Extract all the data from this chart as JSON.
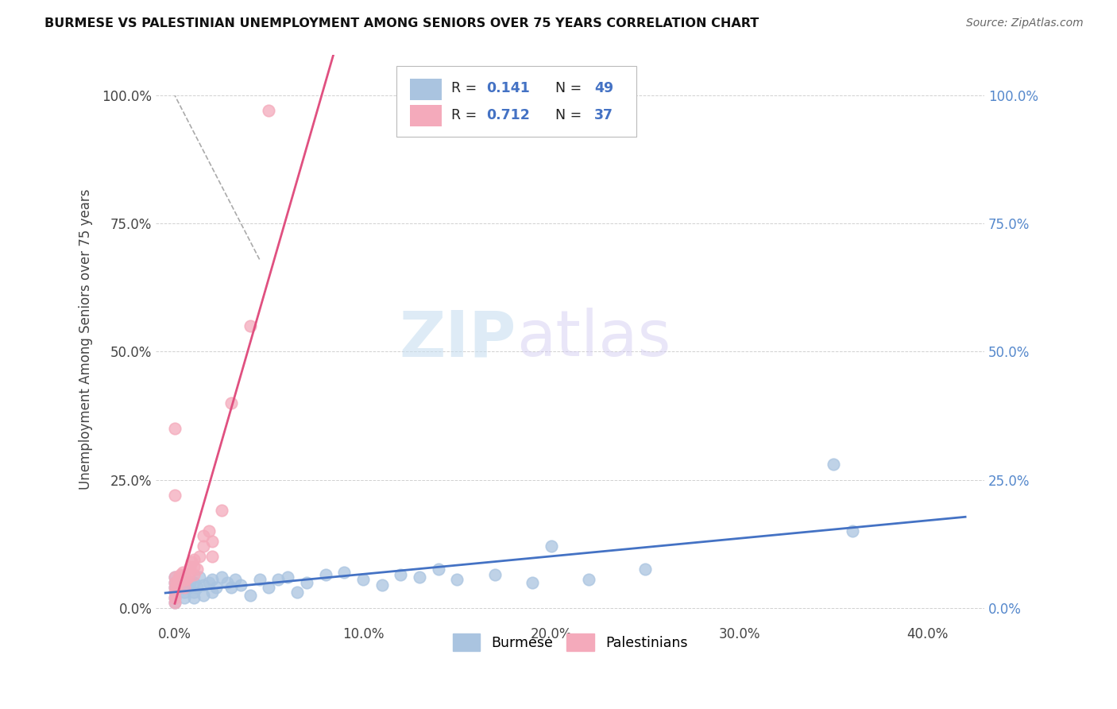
{
  "title": "BURMESE VS PALESTINIAN UNEMPLOYMENT AMONG SENIORS OVER 75 YEARS CORRELATION CHART",
  "source": "Source: ZipAtlas.com",
  "ylabel": "Unemployment Among Seniors over 75 years",
  "x_tick_labels": [
    "0.0%",
    "10.0%",
    "20.0%",
    "30.0%",
    "40.0%"
  ],
  "x_tick_vals": [
    0.0,
    0.1,
    0.2,
    0.3,
    0.4
  ],
  "y_tick_labels": [
    "0.0%",
    "25.0%",
    "50.0%",
    "75.0%",
    "100.0%"
  ],
  "y_tick_vals": [
    0.0,
    0.25,
    0.5,
    0.75,
    1.0
  ],
  "xlim": [
    -0.01,
    0.43
  ],
  "ylim": [
    -0.03,
    1.08
  ],
  "burmese_R": 0.141,
  "burmese_N": 49,
  "palestinian_R": 0.712,
  "palestinian_N": 37,
  "burmese_color": "#aac4e0",
  "palestinian_color": "#f4aabb",
  "burmese_line_color": "#4472c4",
  "palestinian_line_color": "#e05080",
  "legend_labels": [
    "Burmese",
    "Palestinians"
  ],
  "watermark_zip": "ZIP",
  "watermark_atlas": "atlas",
  "burmese_x": [
    0.0,
    0.0,
    0.0,
    0.0,
    0.0,
    0.0,
    0.005,
    0.005,
    0.005,
    0.007,
    0.008,
    0.01,
    0.01,
    0.01,
    0.012,
    0.013,
    0.015,
    0.015,
    0.018,
    0.02,
    0.02,
    0.022,
    0.025,
    0.028,
    0.03,
    0.032,
    0.035,
    0.04,
    0.045,
    0.05,
    0.055,
    0.06,
    0.065,
    0.07,
    0.08,
    0.09,
    0.1,
    0.11,
    0.12,
    0.13,
    0.14,
    0.15,
    0.17,
    0.19,
    0.2,
    0.22,
    0.25,
    0.35,
    0.36
  ],
  "burmese_y": [
    0.01,
    0.02,
    0.03,
    0.04,
    0.05,
    0.06,
    0.02,
    0.03,
    0.05,
    0.04,
    0.05,
    0.02,
    0.03,
    0.05,
    0.04,
    0.06,
    0.025,
    0.045,
    0.05,
    0.03,
    0.055,
    0.04,
    0.06,
    0.05,
    0.04,
    0.055,
    0.045,
    0.025,
    0.055,
    0.04,
    0.055,
    0.06,
    0.03,
    0.05,
    0.065,
    0.07,
    0.055,
    0.045,
    0.065,
    0.06,
    0.075,
    0.055,
    0.065,
    0.05,
    0.12,
    0.055,
    0.075,
    0.28,
    0.15
  ],
  "palestinian_x": [
    0.0,
    0.0,
    0.0,
    0.0,
    0.0,
    0.0,
    0.0,
    0.0,
    0.001,
    0.001,
    0.002,
    0.002,
    0.003,
    0.003,
    0.004,
    0.005,
    0.005,
    0.005,
    0.006,
    0.007,
    0.008,
    0.008,
    0.009,
    0.01,
    0.01,
    0.01,
    0.012,
    0.013,
    0.015,
    0.015,
    0.018,
    0.02,
    0.02,
    0.025,
    0.03,
    0.04,
    0.05
  ],
  "palestinian_y": [
    0.01,
    0.02,
    0.03,
    0.04,
    0.05,
    0.06,
    0.22,
    0.35,
    0.04,
    0.05,
    0.05,
    0.06,
    0.055,
    0.065,
    0.07,
    0.04,
    0.055,
    0.065,
    0.055,
    0.06,
    0.07,
    0.08,
    0.09,
    0.065,
    0.08,
    0.095,
    0.075,
    0.1,
    0.12,
    0.14,
    0.15,
    0.1,
    0.13,
    0.19,
    0.4,
    0.55,
    0.97
  ]
}
